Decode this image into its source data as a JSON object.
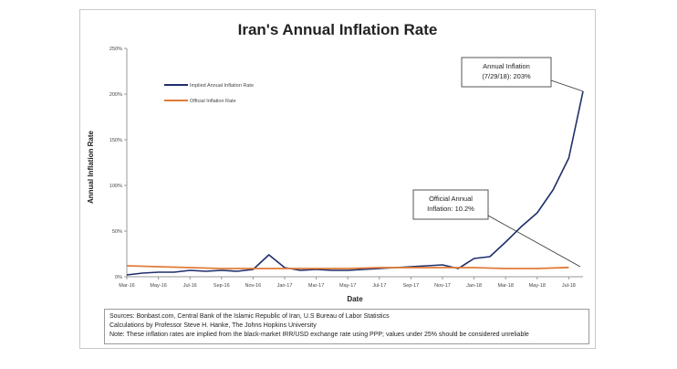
{
  "chart_data": {
    "type": "line",
    "title": "Iran's Annual Inflation Rate",
    "xlabel": "Date",
    "ylabel": "Annual Inflation Rate",
    "ylim": [
      0,
      250
    ],
    "y_ticks": [
      "0%",
      "50%",
      "100%",
      "150%",
      "200%",
      "250%"
    ],
    "x_ticks": [
      "Mar-16",
      "May-16",
      "Jul-16",
      "Sep-16",
      "Nov-16",
      "Jan-17",
      "Mar-17",
      "May-17",
      "Jul-17",
      "Sep-17",
      "Nov-17",
      "Jan-18",
      "Mar-18",
      "May-18",
      "Jul-18"
    ],
    "legend_position": "top-left",
    "grid": false,
    "series": [
      {
        "name": "Implied Annual Inflation Rate",
        "color": "#1f2f6b",
        "points": [
          [
            "Mar-16",
            2
          ],
          [
            "Apr-16",
            4
          ],
          [
            "May-16",
            5
          ],
          [
            "Jun-16",
            5
          ],
          [
            "Jul-16",
            7
          ],
          [
            "Aug-16",
            6
          ],
          [
            "Sep-16",
            7
          ],
          [
            "Oct-16",
            6
          ],
          [
            "Nov-16",
            8
          ],
          [
            "Dec-16",
            24
          ],
          [
            "Jan-17",
            10
          ],
          [
            "Feb-17",
            7
          ],
          [
            "Mar-17",
            8
          ],
          [
            "Apr-17",
            7
          ],
          [
            "May-17",
            7
          ],
          [
            "Jun-17",
            8
          ],
          [
            "Jul-17",
            9
          ],
          [
            "Aug-17",
            10
          ],
          [
            "Sep-17",
            11
          ],
          [
            "Oct-17",
            12
          ],
          [
            "Nov-17",
            13
          ],
          [
            "Dec-17",
            9
          ],
          [
            "Jan-18",
            20
          ],
          [
            "Feb-18",
            22
          ],
          [
            "Mar-18",
            38
          ],
          [
            "Apr-18",
            55
          ],
          [
            "May-18",
            70
          ],
          [
            "Jun-18",
            95
          ],
          [
            "Jul-18",
            130
          ],
          [
            "Jul-29-18",
            203
          ]
        ]
      },
      {
        "name": "Official Inflation Rate",
        "color": "#e07b39",
        "points": [
          [
            "Mar-16",
            12
          ],
          [
            "May-16",
            11
          ],
          [
            "Jul-16",
            10
          ],
          [
            "Sep-16",
            9
          ],
          [
            "Nov-16",
            9
          ],
          [
            "Jan-17",
            9
          ],
          [
            "Mar-17",
            9
          ],
          [
            "May-17",
            9
          ],
          [
            "Jul-17",
            10
          ],
          [
            "Sep-17",
            10
          ],
          [
            "Nov-17",
            10
          ],
          [
            "Jan-18",
            10
          ],
          [
            "Mar-18",
            9
          ],
          [
            "May-18",
            9
          ],
          [
            "Jul-18",
            10.2
          ]
        ]
      }
    ],
    "annotations": [
      {
        "lines": [
          "Annual Inflation",
          "(7/29/18): 203%"
        ]
      },
      {
        "lines": [
          "Official Annual",
          "Inflation: 10.2%"
        ]
      }
    ]
  },
  "sources": {
    "line1": "Sources: Bonbast.com, Central Bank of the Islamic Republic of Iran, U.S Bureau of Labor Statistics",
    "line2": "Calculations by Professor Steve H. Hanke, The Johns Hopkins University",
    "line3": "Note: These inflation rates are implied from the black-market IRR/USD exchange rate using PPP; values under 25% should be considered unreliable"
  }
}
